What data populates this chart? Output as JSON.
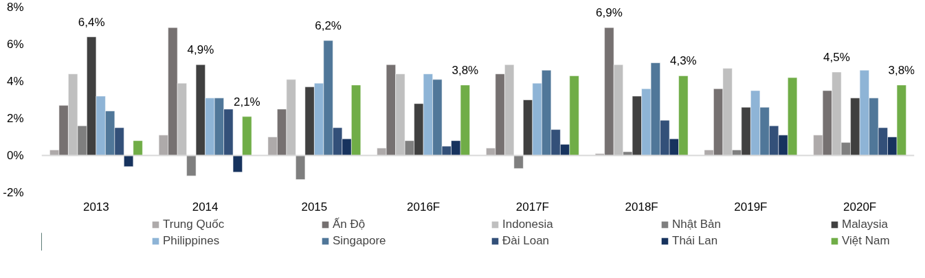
{
  "chart_data": {
    "type": "bar",
    "categories": [
      "2013",
      "2014",
      "2015",
      "2016F",
      "2017F",
      "2018F",
      "2019F",
      "2020F"
    ],
    "ylim": [
      -2,
      8
    ],
    "yticks": [
      {
        "value": -2,
        "label": "-2%"
      },
      {
        "value": 0,
        "label": "0%"
      },
      {
        "value": 2,
        "label": "2%"
      },
      {
        "value": 4,
        "label": "4%"
      },
      {
        "value": 6,
        "label": "6%"
      },
      {
        "value": 8,
        "label": "8%"
      }
    ],
    "grid": false,
    "ref_lines": [
      {
        "axis": "y",
        "value": 0,
        "color": "#d9d9d9"
      }
    ],
    "legend": "bottom",
    "series": [
      {
        "name": "Trung Quốc",
        "color": "#aeaaaa",
        "values": [
          0.3,
          1.1,
          1.0,
          0.4,
          0.4,
          0.1,
          0.3,
          1.1
        ]
      },
      {
        "name": "Ấn Độ",
        "color": "#767171",
        "values": [
          2.7,
          6.9,
          2.5,
          4.9,
          4.4,
          6.9,
          3.6,
          3.5
        ],
        "value_labels": [
          null,
          null,
          null,
          null,
          null,
          "6,9%",
          null,
          null
        ]
      },
      {
        "name": "Indonesia",
        "color": "#bfbfbf",
        "values": [
          4.4,
          3.9,
          4.1,
          4.4,
          4.9,
          4.9,
          4.7,
          4.5
        ],
        "value_labels": [
          null,
          null,
          null,
          null,
          null,
          null,
          null,
          "4,5%"
        ]
      },
      {
        "name": "Nhật Bản",
        "color": "#7f7f7f",
        "values": [
          1.6,
          -1.1,
          -1.3,
          0.8,
          -0.7,
          0.2,
          0.3,
          0.7
        ]
      },
      {
        "name": "Malaysia",
        "color": "#404040",
        "values": [
          6.4,
          4.9,
          3.7,
          2.8,
          3.0,
          3.2,
          2.6,
          3.1
        ],
        "value_labels": [
          "6,4%",
          "4,9%",
          null,
          null,
          null,
          null,
          null,
          null
        ]
      },
      {
        "name": "Philippines",
        "color": "#8eb4d6",
        "values": [
          3.2,
          3.1,
          3.9,
          4.4,
          3.9,
          3.6,
          3.5,
          4.6
        ]
      },
      {
        "name": "Singapore",
        "color": "#507799",
        "values": [
          2.4,
          3.1,
          6.2,
          4.1,
          4.6,
          5.0,
          2.6,
          3.1
        ],
        "value_labels": [
          null,
          null,
          "6,2%",
          null,
          null,
          null,
          null,
          null
        ]
      },
      {
        "name": "Đài Loan",
        "color": "#335079",
        "values": [
          1.5,
          2.5,
          1.5,
          0.5,
          1.4,
          1.9,
          1.6,
          1.5
        ]
      },
      {
        "name": "Thái Lan",
        "color": "#17335e",
        "values": [
          -0.6,
          -0.9,
          0.9,
          0.8,
          0.6,
          0.9,
          1.1,
          1.0
        ]
      },
      {
        "name": "Việt Nam",
        "color": "#70ad47",
        "values": [
          0.8,
          2.1,
          3.8,
          3.8,
          4.3,
          4.3,
          4.2,
          3.8
        ],
        "value_labels": [
          null,
          "2,1%",
          null,
          "3,8%",
          null,
          "4,3%",
          null,
          "3,8%"
        ]
      }
    ]
  }
}
